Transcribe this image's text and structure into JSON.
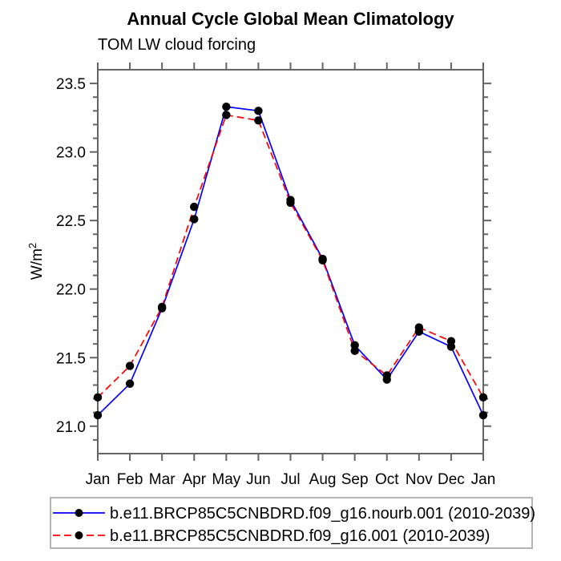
{
  "page": {
    "background": "#ffffff"
  },
  "chart_data": {
    "type": "line",
    "title": "Annual Cycle Global Mean Climatology",
    "subtitle": "TOM LW cloud forcing",
    "ylabel": "W/m²",
    "ylabel_parts": [
      "W/m",
      "2"
    ],
    "xlabel": "",
    "x_tick_labels": [
      "Jan",
      "Feb",
      "Mar",
      "Apr",
      "May",
      "Jun",
      "Jul",
      "Aug",
      "Sep",
      "Oct",
      "Nov",
      "Dec",
      "Jan"
    ],
    "ylim": [
      20.8,
      23.6
    ],
    "y_major_ticks": [
      21.0,
      21.5,
      22.0,
      22.5,
      23.0,
      23.5
    ],
    "y_minor_tick_step": 0.1,
    "grid": false,
    "axis_color": "#646464",
    "marker_color": "#000000",
    "legend": {
      "position": "bottom",
      "border_color": "#b4b4b4"
    },
    "series": [
      {
        "name": "b.e11.BRCP85C5CNBDRD.f09_g16.nourb.001 (2010-2039)",
        "color": "#0000ff",
        "line_style": "solid",
        "marker": "filled-circle",
        "values": [
          21.08,
          21.31,
          21.86,
          22.51,
          23.33,
          23.3,
          22.65,
          22.22,
          21.59,
          21.34,
          21.69,
          21.58,
          21.08
        ]
      },
      {
        "name": "b.e11.BRCP85C5CNBDRD.f09_g16.001 (2010-2039)",
        "color": "#ff0000",
        "line_style": "dashed",
        "marker": "filled-circle",
        "values": [
          21.21,
          21.44,
          21.87,
          22.6,
          23.27,
          23.23,
          22.63,
          22.21,
          21.55,
          21.37,
          21.72,
          21.62,
          21.21
        ]
      }
    ]
  }
}
